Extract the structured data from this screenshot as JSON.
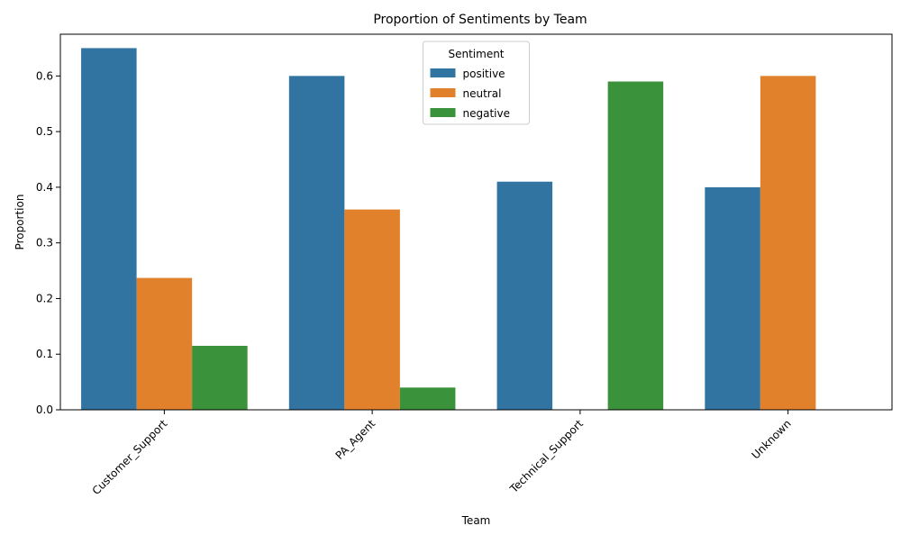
{
  "chart_data": {
    "type": "bar",
    "title": "Proportion of Sentiments by Team",
    "xlabel": "Team",
    "ylabel": "Proportion",
    "categories": [
      "Customer_Support",
      "PA_Agent",
      "Technical_Support",
      "Unknown"
    ],
    "series": [
      {
        "name": "positive",
        "color": "#3274a1",
        "values": [
          0.65,
          0.6,
          0.41,
          0.4
        ]
      },
      {
        "name": "neutral",
        "color": "#e1812c",
        "values": [
          0.237,
          0.36,
          0.0,
          0.6
        ]
      },
      {
        "name": "negative",
        "color": "#3a923a",
        "values": [
          0.115,
          0.04,
          0.59,
          0.0
        ]
      }
    ],
    "ylim": [
      0,
      0.675
    ],
    "yticks": [
      "0.0",
      "0.1",
      "0.2",
      "0.3",
      "0.4",
      "0.5",
      "0.6"
    ],
    "grid": false,
    "legend": {
      "title": "Sentiment",
      "placement": "top-center"
    },
    "xtick_rotation": "45-degrees"
  }
}
